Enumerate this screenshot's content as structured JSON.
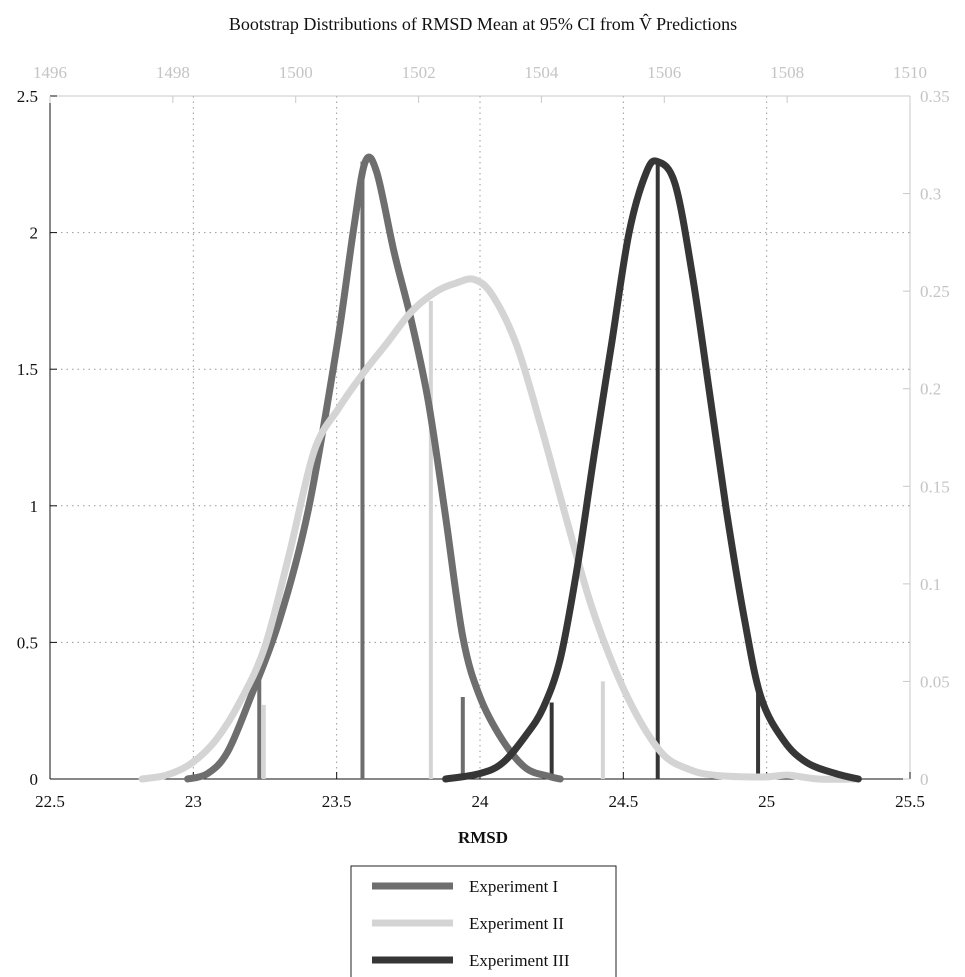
{
  "chart_data": {
    "type": "line",
    "title": "Bootstrap Distributions of RMSD Mean at 95% CI from V̂ Predictions",
    "xlabel": "RMSD",
    "ylabel": "",
    "xlim": [
      22.5,
      25.5
    ],
    "ylim": [
      0,
      2.5
    ],
    "x_ticks": [
      "22.5",
      "23",
      "23.5",
      "24",
      "24.5",
      "25",
      "25.5"
    ],
    "y_ticks": [
      "0",
      "0.5",
      "1",
      "1.5",
      "2",
      "2.5"
    ],
    "x2lim": [
      1496,
      1510
    ],
    "x2_ticks": [
      "1496",
      "1498",
      "1500",
      "1502",
      "1504",
      "1506",
      "1508",
      "1510"
    ],
    "y2lim": [
      0,
      0.35
    ],
    "y2_ticks": [
      "0",
      "0.05",
      "0.1",
      "0.15",
      "0.2",
      "0.25",
      "0.3",
      "0.35"
    ],
    "grid": true,
    "legend_position": "bottom-center",
    "series": [
      {
        "name": "Experiment I",
        "color": "#6e6e6e",
        "axis": "primary",
        "points": [
          [
            22.98,
            0.0
          ],
          [
            23.05,
            0.02
          ],
          [
            23.12,
            0.1
          ],
          [
            23.2,
            0.3
          ],
          [
            23.3,
            0.58
          ],
          [
            23.4,
            0.98
          ],
          [
            23.5,
            1.58
          ],
          [
            23.56,
            2.02
          ],
          [
            23.6,
            2.26
          ],
          [
            23.64,
            2.22
          ],
          [
            23.7,
            1.93
          ],
          [
            23.76,
            1.68
          ],
          [
            23.82,
            1.38
          ],
          [
            23.88,
            0.96
          ],
          [
            23.94,
            0.52
          ],
          [
            24.0,
            0.3
          ],
          [
            24.08,
            0.14
          ],
          [
            24.16,
            0.04
          ],
          [
            24.24,
            0.01
          ],
          [
            24.28,
            0.0
          ]
        ],
        "ci_lines": [
          [
            23.23,
            0.37
          ],
          [
            23.59,
            2.26
          ],
          [
            23.94,
            0.3
          ]
        ]
      },
      {
        "name": "Experiment II",
        "color": "#d4d4d4",
        "axis": "secondary",
        "x2points": [
          [
            1497.5,
            0.0
          ],
          [
            1497.9,
            0.002
          ],
          [
            1498.3,
            0.008
          ],
          [
            1498.7,
            0.02
          ],
          [
            1499.1,
            0.04
          ],
          [
            1499.5,
            0.068
          ],
          [
            1499.9,
            0.116
          ],
          [
            1500.3,
            0.168
          ],
          [
            1500.7,
            0.19
          ],
          [
            1501.1,
            0.208
          ],
          [
            1501.5,
            0.224
          ],
          [
            1501.9,
            0.24
          ],
          [
            1502.3,
            0.25
          ],
          [
            1502.6,
            0.254
          ],
          [
            1502.9,
            0.256
          ],
          [
            1503.2,
            0.248
          ],
          [
            1503.6,
            0.222
          ],
          [
            1504.0,
            0.18
          ],
          [
            1504.4,
            0.134
          ],
          [
            1504.8,
            0.09
          ],
          [
            1505.2,
            0.056
          ],
          [
            1505.6,
            0.03
          ],
          [
            1506.0,
            0.012
          ],
          [
            1506.4,
            0.005
          ],
          [
            1506.8,
            0.002
          ],
          [
            1507.6,
            0.001
          ],
          [
            1508.0,
            0.002
          ],
          [
            1508.5,
            0.0
          ],
          [
            1509.1,
            0.0
          ]
        ],
        "ci_lines": [
          [
            1499.48,
            0.038
          ],
          [
            1502.2,
            0.245
          ],
          [
            1505.0,
            0.05
          ]
        ]
      },
      {
        "name": "Experiment III",
        "color": "#363636",
        "axis": "primary",
        "points": [
          [
            23.88,
            0.0
          ],
          [
            24.0,
            0.02
          ],
          [
            24.08,
            0.06
          ],
          [
            24.16,
            0.16
          ],
          [
            24.22,
            0.26
          ],
          [
            24.28,
            0.44
          ],
          [
            24.34,
            0.78
          ],
          [
            24.4,
            1.2
          ],
          [
            24.46,
            1.6
          ],
          [
            24.52,
            2.0
          ],
          [
            24.58,
            2.22
          ],
          [
            24.62,
            2.26
          ],
          [
            24.68,
            2.18
          ],
          [
            24.74,
            1.85
          ],
          [
            24.8,
            1.42
          ],
          [
            24.86,
            0.98
          ],
          [
            24.92,
            0.6
          ],
          [
            24.98,
            0.3
          ],
          [
            25.06,
            0.14
          ],
          [
            25.14,
            0.06
          ],
          [
            25.24,
            0.02
          ],
          [
            25.32,
            0.0
          ]
        ],
        "ci_lines": [
          [
            24.25,
            0.28
          ],
          [
            24.62,
            2.26
          ],
          [
            24.97,
            0.33
          ]
        ]
      }
    ]
  }
}
